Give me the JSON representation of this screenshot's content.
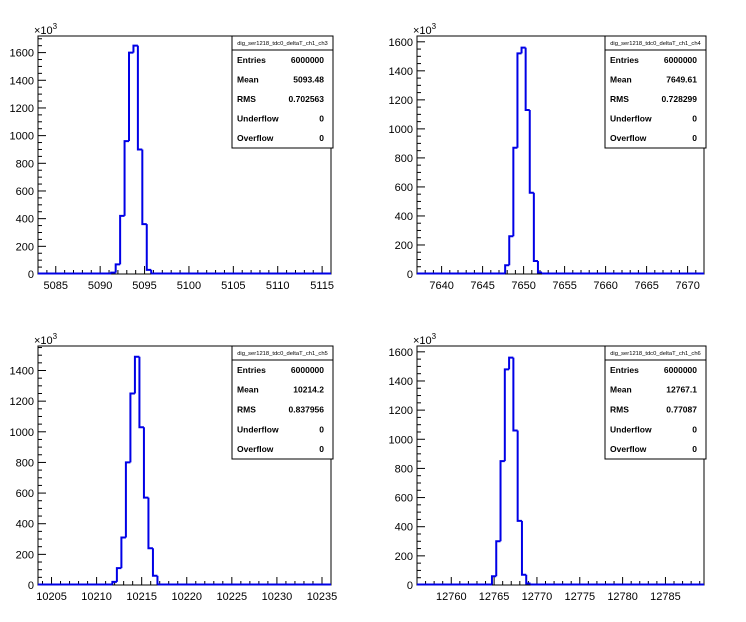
{
  "stats_labels": {
    "entries": "Entries",
    "mean": "Mean",
    "rms": "RMS",
    "underflow": "Underflow",
    "overflow": "Overflow"
  },
  "exponent_label": "×10",
  "exponent_power": "3",
  "colors": {
    "histogram_line": "#0000e6",
    "axis": "#000000",
    "background": "#ffffff"
  },
  "chart_data": [
    {
      "type": "histogram",
      "title": "dig_ser1218_tdc0_deltaT_ch1_ch3",
      "xlim": [
        5083,
        5116
      ],
      "ylim": [
        0,
        1720
      ],
      "y_scale_note": "×10^3",
      "xticks": [
        5085,
        5090,
        5095,
        5100,
        5105,
        5110,
        5115
      ],
      "yticks": [
        0,
        200,
        400,
        600,
        800,
        1000,
        1200,
        1400,
        1600
      ],
      "bin_width": 0.5,
      "bins": [
        {
          "x": 5091.5,
          "y": 10
        },
        {
          "x": 5092.0,
          "y": 70
        },
        {
          "x": 5092.5,
          "y": 420
        },
        {
          "x": 5093.0,
          "y": 960
        },
        {
          "x": 5093.5,
          "y": 1600
        },
        {
          "x": 5094.0,
          "y": 1650
        },
        {
          "x": 5094.5,
          "y": 900
        },
        {
          "x": 5095.0,
          "y": 360
        },
        {
          "x": 5095.5,
          "y": 30
        }
      ],
      "stats": {
        "entries": "6000000",
        "mean": "5093.48",
        "rms": "0.702563",
        "underflow": "0",
        "overflow": "0"
      }
    },
    {
      "type": "histogram",
      "title": "dig_ser1218_tdc0_deltaT_ch1_ch4",
      "xlim": [
        7637,
        7672
      ],
      "ylim": [
        0,
        1640
      ],
      "y_scale_note": "×10^3",
      "xticks": [
        7640,
        7645,
        7650,
        7655,
        7660,
        7665,
        7670
      ],
      "yticks": [
        0,
        200,
        400,
        600,
        800,
        1000,
        1200,
        1400,
        1600
      ],
      "bin_width": 0.5,
      "bins": [
        {
          "x": 7648.0,
          "y": 60
        },
        {
          "x": 7648.5,
          "y": 260
        },
        {
          "x": 7649.0,
          "y": 870
        },
        {
          "x": 7649.5,
          "y": 1520
        },
        {
          "x": 7650.0,
          "y": 1560
        },
        {
          "x": 7650.5,
          "y": 1130
        },
        {
          "x": 7651.0,
          "y": 560
        },
        {
          "x": 7651.5,
          "y": 90
        },
        {
          "x": 7652.0,
          "y": 10
        }
      ],
      "stats": {
        "entries": "6000000",
        "mean": "7649.61",
        "rms": "0.728299",
        "underflow": "0",
        "overflow": "0"
      }
    },
    {
      "type": "histogram",
      "title": "dig_ser1218_tdc0_deltaT_ch1_ch5",
      "xlim": [
        10203.5,
        10236
      ],
      "ylim": [
        0,
        1560
      ],
      "y_scale_note": "×10^3",
      "xticks": [
        10205,
        10210,
        10215,
        10220,
        10225,
        10230,
        10235
      ],
      "yticks": [
        0,
        200,
        400,
        600,
        800,
        1000,
        1200,
        1400
      ],
      "bin_width": 0.5,
      "bins": [
        {
          "x": 10212.0,
          "y": 20
        },
        {
          "x": 10212.5,
          "y": 110
        },
        {
          "x": 10213.0,
          "y": 310
        },
        {
          "x": 10213.5,
          "y": 800
        },
        {
          "x": 10214.0,
          "y": 1250
        },
        {
          "x": 10214.5,
          "y": 1490
        },
        {
          "x": 10215.0,
          "y": 1030
        },
        {
          "x": 10215.5,
          "y": 570
        },
        {
          "x": 10216.0,
          "y": 240
        },
        {
          "x": 10216.5,
          "y": 60
        }
      ],
      "stats": {
        "entries": "6000000",
        "mean": "10214.2",
        "rms": "0.837956",
        "underflow": "0",
        "overflow": "0"
      }
    },
    {
      "type": "histogram",
      "title": "dig_ser1218_tdc0_deltaT_ch1_ch6",
      "xlim": [
        12756,
        12789.5
      ],
      "ylim": [
        0,
        1640
      ],
      "y_scale_note": "×10^3",
      "xticks": [
        12760,
        12765,
        12770,
        12775,
        12780,
        12785
      ],
      "yticks": [
        0,
        200,
        400,
        600,
        800,
        1000,
        1200,
        1400,
        1600
      ],
      "bin_width": 0.5,
      "bins": [
        {
          "x": 12765.0,
          "y": 60
        },
        {
          "x": 12765.5,
          "y": 300
        },
        {
          "x": 12766.0,
          "y": 850
        },
        {
          "x": 12766.5,
          "y": 1480
        },
        {
          "x": 12767.0,
          "y": 1560
        },
        {
          "x": 12767.5,
          "y": 1060
        },
        {
          "x": 12768.0,
          "y": 440
        },
        {
          "x": 12768.5,
          "y": 70
        },
        {
          "x": 12769.0,
          "y": 10
        }
      ],
      "stats": {
        "entries": "6000000",
        "mean": "12767.1",
        "rms": "0.77087",
        "underflow": "0",
        "overflow": "0"
      }
    }
  ]
}
